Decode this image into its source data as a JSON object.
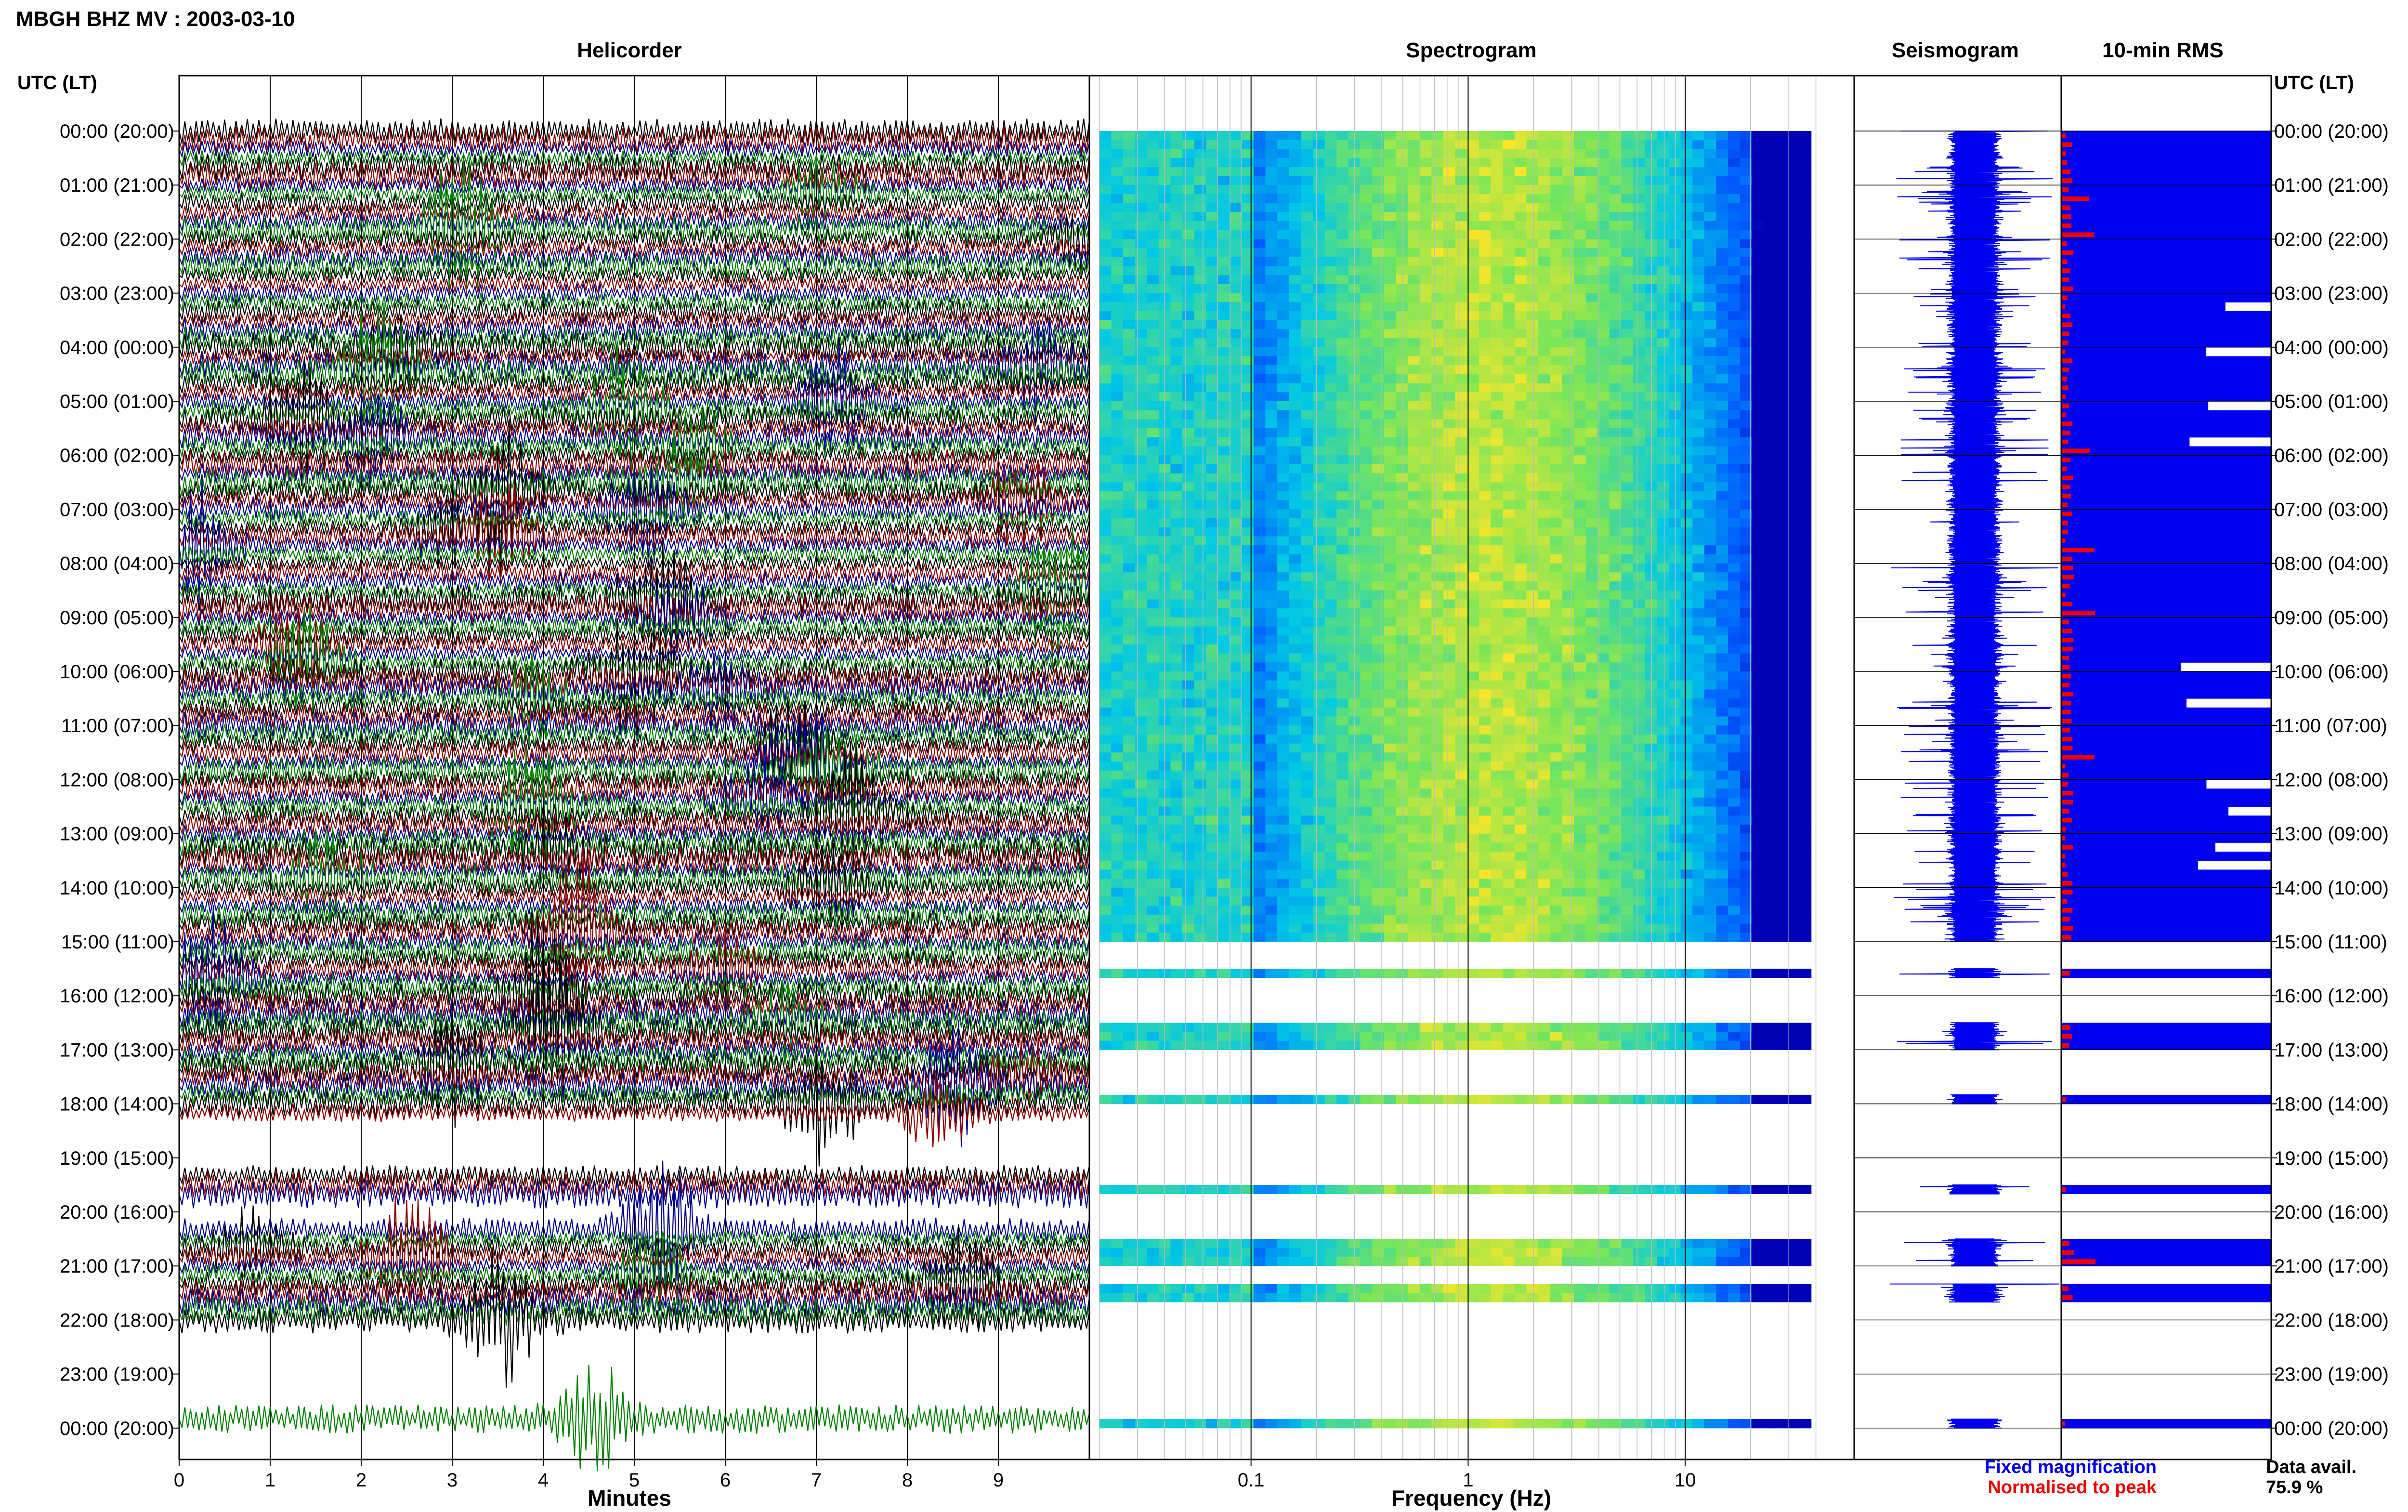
{
  "title": "MBGH BHZ MV : 2003-03-10",
  "panels": {
    "helicorder": "Helicorder",
    "spectrogram": "Spectrogram",
    "seismogram": "Seismogram",
    "rms": "10-min RMS"
  },
  "left_axis_header": "UTC (LT)",
  "right_axis_header": "UTC (LT)",
  "time_labels": [
    "00:00 (20:00)",
    "01:00 (21:00)",
    "02:00 (22:00)",
    "03:00 (23:00)",
    "04:00 (00:00)",
    "05:00 (01:00)",
    "06:00 (02:00)",
    "07:00 (03:00)",
    "08:00 (04:00)",
    "09:00 (05:00)",
    "10:00 (06:00)",
    "11:00 (07:00)",
    "12:00 (08:00)",
    "13:00 (09:00)",
    "14:00 (10:00)",
    "15:00 (11:00)",
    "16:00 (12:00)",
    "17:00 (13:00)",
    "18:00 (14:00)",
    "19:00 (15:00)",
    "20:00 (16:00)",
    "21:00 (17:00)",
    "22:00 (18:00)",
    "23:00 (19:00)",
    "00:00 (20:00)"
  ],
  "x_labels": {
    "helicorder": "Minutes",
    "spectrogram": "Frequency (Hz)"
  },
  "legend": {
    "fixed": "Fixed magnification",
    "normalised": "Normalised to peak",
    "fixed_color": "#0000ee",
    "normalised_color": "#ee0000"
  },
  "data_avail": {
    "label": "Data avail.",
    "value": "75.9 %"
  },
  "colors": {
    "trace_black": "#000000",
    "trace_red": "#8b0000",
    "trace_blue": "#00008b",
    "trace_green": "#008000",
    "rms_blue": "#0000ee",
    "rms_red": "#ee0000"
  },
  "chart_data": [
    {
      "type": "line",
      "title": "Helicorder",
      "xlabel": "Minutes",
      "ylabel": "UTC (LT)",
      "xlim": [
        0,
        10
      ],
      "xticks": [
        "0",
        "1",
        "2",
        "3",
        "4",
        "5",
        "6",
        "7",
        "8",
        "9"
      ],
      "trace_colors": [
        "black",
        "red",
        "blue",
        "green"
      ],
      "note_ranges_hours_with_data": [
        [
          0,
          15.5
        ],
        [
          15.5,
          18.3
        ],
        [
          19.2,
          19.7
        ],
        [
          20.3,
          22.1
        ],
        [
          23.7,
          24
        ]
      ]
    },
    {
      "type": "heatmap",
      "title": "Spectrogram",
      "xlabel": "Frequency (Hz)",
      "x_scale": "log",
      "xticks": [
        "0.1",
        "1",
        "10"
      ],
      "rows_per_hour": 6,
      "data_segments_hours": [
        [
          0.0,
          13.9
        ],
        [
          14.0,
          14.95
        ],
        [
          15.35,
          15.55
        ],
        [
          16.35,
          16.95
        ],
        [
          17.7,
          17.95
        ],
        [
          19.38,
          19.65
        ],
        [
          20.38,
          20.95
        ],
        [
          21.3,
          21.55
        ],
        [
          23.8,
          24.0
        ]
      ]
    },
    {
      "type": "line",
      "title": "Seismogram",
      "description_rows_per_hour": 6
    },
    {
      "type": "bar",
      "title": "10-min RMS",
      "orientation": "horizontal",
      "rows_per_hour": 6,
      "series": [
        {
          "name": "Fixed magnification",
          "color": "#0000ee"
        },
        {
          "name": "Normalised to peak",
          "color": "#ee0000"
        }
      ],
      "data_avail_percent": 75.9
    }
  ]
}
